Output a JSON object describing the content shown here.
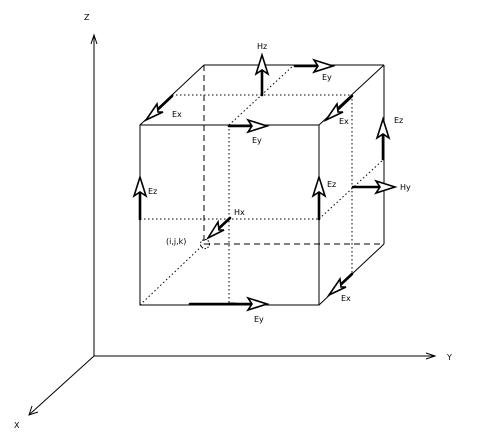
{
  "axes": {
    "z_label": "Z",
    "y_label": "Y",
    "x_label": "X"
  },
  "origin_label": "(i,j,k)",
  "field_labels": {
    "hz": "Hz",
    "ey_top_back": "Ey",
    "ex_top_left": "Ex",
    "ex_top_right": "Ex",
    "ey_top_front": "Ey",
    "ez_right_back": "Ez",
    "ez_left_front": "Ez",
    "ez_right_front": "Ez",
    "hy": "Hy",
    "hx": "Hx",
    "ex_bottom_right": "Ex",
    "ey_bottom_front": "Ey"
  }
}
